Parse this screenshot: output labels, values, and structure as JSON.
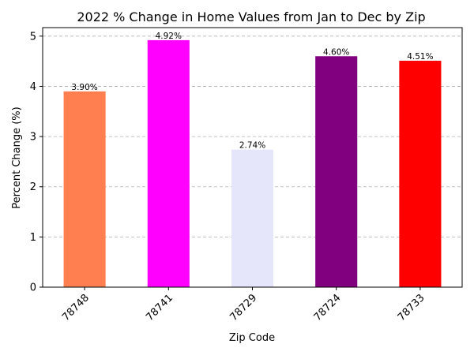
{
  "chart_data": {
    "type": "bar",
    "title": "2022 % Change in Home Values from Jan to Dec by Zip",
    "xlabel": "Zip Code",
    "ylabel": "Percent Change (%)",
    "categories": [
      "78748",
      "78741",
      "78729",
      "78724",
      "78733"
    ],
    "values": [
      3.9,
      4.92,
      2.74,
      4.6,
      4.51
    ],
    "data_labels": [
      "3.90%",
      "4.92%",
      "2.74%",
      "4.60%",
      "4.51%"
    ],
    "colors": [
      "#ff7f50",
      "#ff00ff",
      "#e6e6fa",
      "#800080",
      "#ff0000"
    ],
    "ylim": [
      0,
      5.17
    ],
    "yticks": [
      "0",
      "1",
      "2",
      "3",
      "4",
      "5"
    ],
    "grid": "y-dashed",
    "legend": "none"
  }
}
